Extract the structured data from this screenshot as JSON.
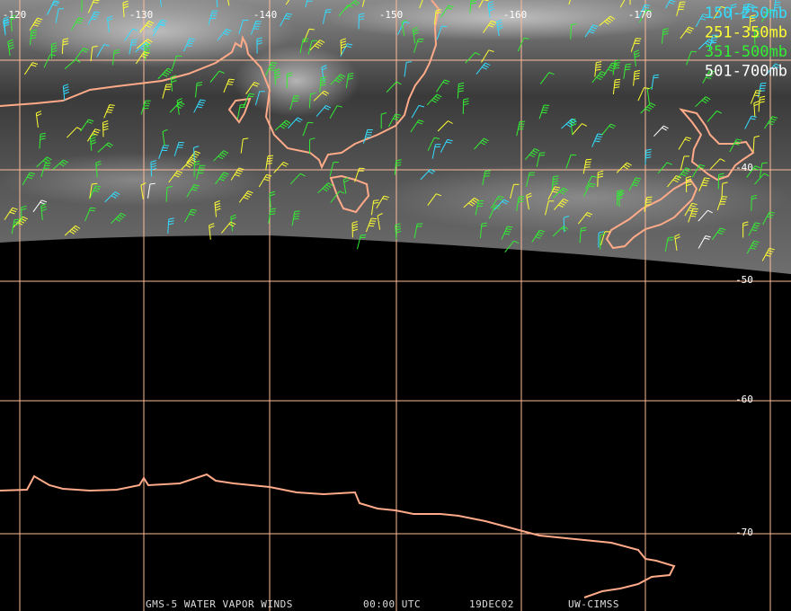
{
  "map": {
    "longitude_labels": [
      "-120",
      "-130",
      "-140",
      "-150",
      "-160",
      "-170"
    ],
    "latitude_labels": [
      "-40",
      "-50",
      "-60",
      "-70"
    ],
    "legend": [
      {
        "label": "150-250mb",
        "color": "#33ddff"
      },
      {
        "label": "251-350mb",
        "color": "#ffff33"
      },
      {
        "label": "351-500mb",
        "color": "#33ee33"
      },
      {
        "label": "501-700mb",
        "color": "#ffffff"
      }
    ],
    "coast_color": "#ffaa88",
    "grid_color": "#ffbb99",
    "footer": [
      "GMS-5 WATER VAPOR WINDS",
      "00:00 UTC",
      "19DEC02",
      "UW-CIMSS"
    ]
  }
}
